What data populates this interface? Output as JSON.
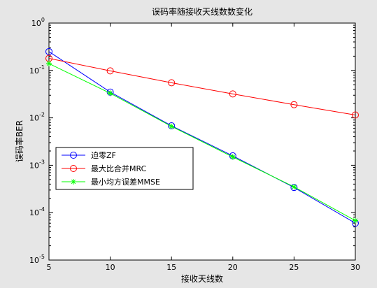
{
  "chart_data": {
    "type": "line",
    "title": "误码率随接收天线数数变化",
    "xlabel": "接收天线数",
    "ylabel": "误码率BER",
    "xlim": [
      5,
      30
    ],
    "ylim": [
      1e-05,
      1
    ],
    "yscale": "log",
    "grid": false,
    "legend_position": "lower-left",
    "x_ticks": [
      5,
      10,
      15,
      20,
      25,
      30
    ],
    "y_tick_exponents": [
      0,
      -1,
      -2,
      -3,
      -4,
      -5
    ],
    "x": [
      5,
      10,
      15,
      20,
      25,
      30
    ],
    "series": [
      {
        "name": "迫零ZF",
        "color": "#0000ff",
        "marker": "circle",
        "values": [
          0.25,
          0.035,
          0.0068,
          0.00158,
          0.00034,
          6e-05
        ]
      },
      {
        "name": "最大比合并MRC",
        "color": "#ff0000",
        "marker": "circle",
        "values": [
          0.18,
          0.098,
          0.055,
          0.032,
          0.019,
          0.0115
        ]
      },
      {
        "name": "最小均方误差MMSE",
        "color": "#00ff00",
        "marker": "star",
        "values": [
          0.14,
          0.033,
          0.0066,
          0.0015,
          0.00035,
          6.8e-05
        ]
      }
    ]
  }
}
